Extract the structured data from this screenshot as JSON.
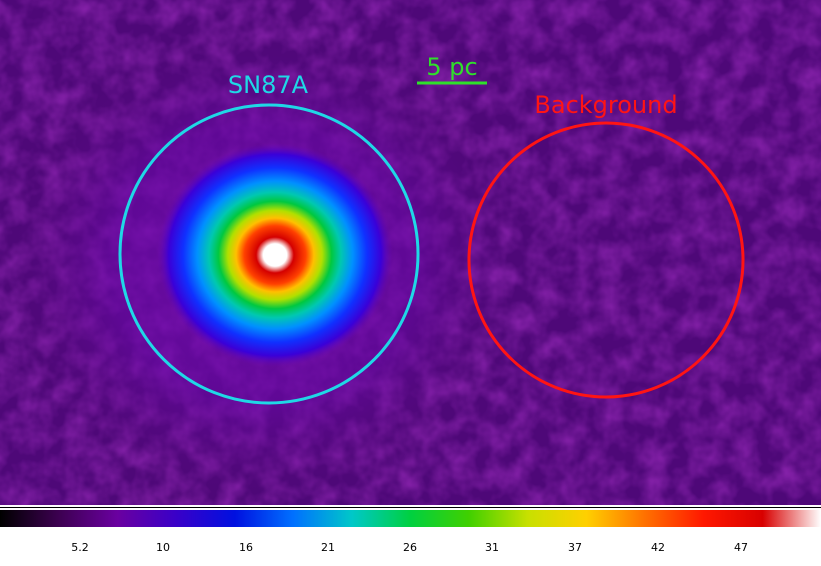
{
  "image": {
    "source_label": "SN87A",
    "background_label": "Background",
    "scale_bar_label": "5 pc"
  },
  "colors": {
    "source_circle": "#1fd8e6",
    "background_circle": "#ff1414",
    "scale_bar": "#2fe02a",
    "field": "#5a0a82"
  },
  "colorbar": {
    "ticks": [
      "5.2",
      "10",
      "16",
      "21",
      "26",
      "31",
      "37",
      "42",
      "47"
    ],
    "palette": [
      "#000000",
      "#3c0050",
      "#6a00a0",
      "#3a00c8",
      "#0010e0",
      "#0070ff",
      "#00c8c8",
      "#00d040",
      "#40d000",
      "#c8e000",
      "#ffd000",
      "#ff7000",
      "#ff1800",
      "#d80000",
      "#ffffff"
    ]
  }
}
